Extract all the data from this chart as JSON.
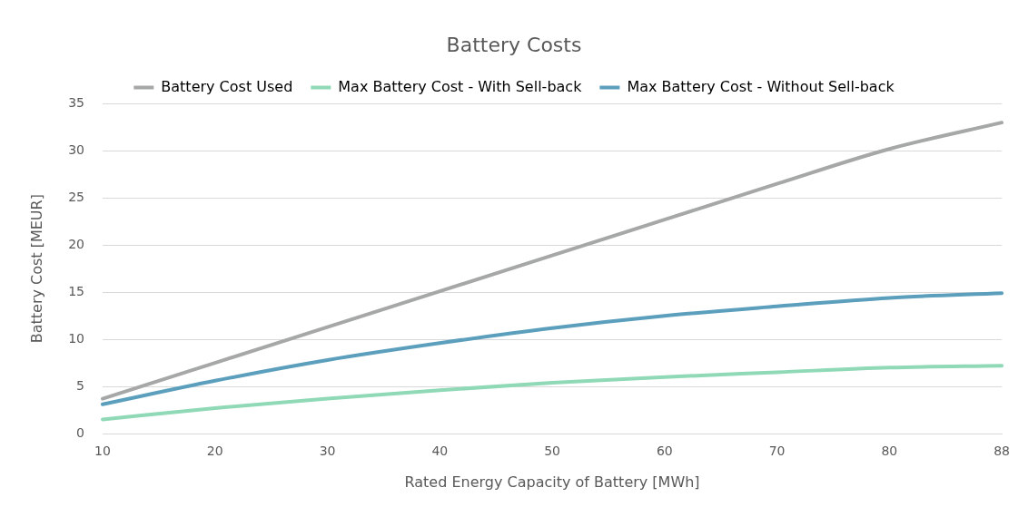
{
  "chart_data": {
    "type": "line",
    "title": "Battery Costs",
    "xlabel": "Rated Energy Capacity of Battery [MWh]",
    "ylabel": "Battery Cost [MEUR]",
    "categories": [
      "10",
      "20",
      "30",
      "40",
      "50",
      "60",
      "70",
      "80",
      "88"
    ],
    "series": [
      {
        "name": "Battery Cost Used",
        "color": "#a5a8a6",
        "values": [
          3.7,
          7.5,
          11.3,
          15.1,
          18.9,
          22.7,
          26.5,
          30.2,
          33.0
        ]
      },
      {
        "name": "Max Battery Cost - With Sell-back",
        "color": "#8fd9b6",
        "values": [
          1.5,
          2.7,
          3.7,
          4.6,
          5.4,
          6.0,
          6.5,
          7.0,
          7.2
        ]
      },
      {
        "name": "Max Battery Cost - Without Sell-back",
        "color": "#5b9fbd",
        "values": [
          3.1,
          5.6,
          7.8,
          9.6,
          11.2,
          12.5,
          13.5,
          14.4,
          14.9
        ]
      }
    ],
    "ylim": [
      0,
      35
    ],
    "yticks": [
      0,
      5,
      10,
      15,
      20,
      25,
      30,
      35
    ],
    "grid": "y",
    "legend": "top",
    "marker": "none",
    "line_style": "solid"
  }
}
